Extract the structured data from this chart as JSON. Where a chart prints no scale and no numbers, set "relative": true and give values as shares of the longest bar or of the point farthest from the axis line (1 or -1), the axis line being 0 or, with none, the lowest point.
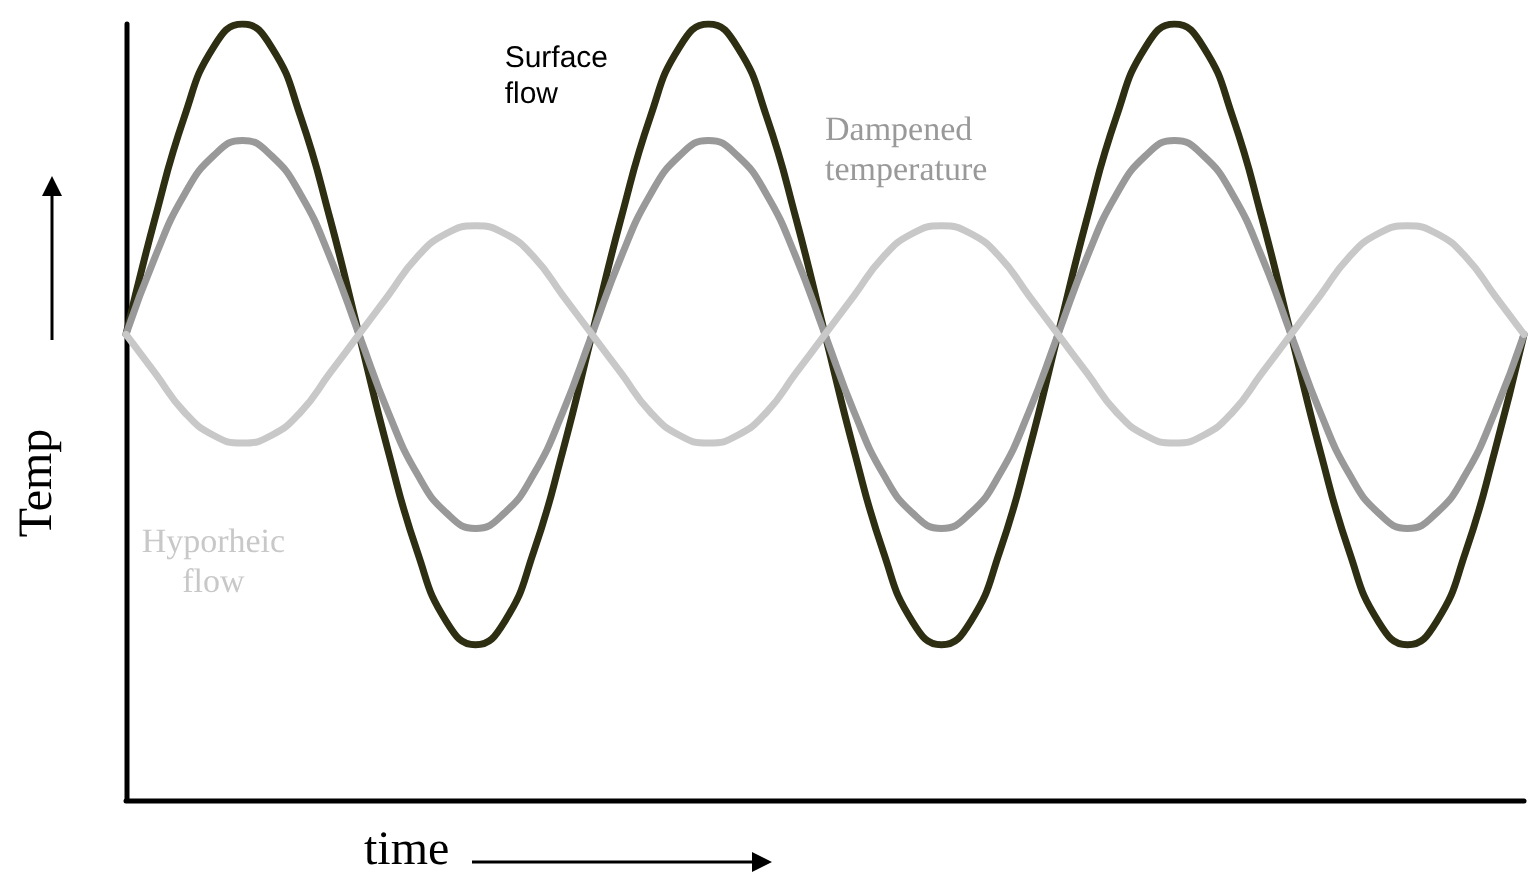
{
  "chart_data": {
    "type": "line",
    "relative": true,
    "xlabel": "time",
    "ylabel": "Temp",
    "categories": [
      null,
      null,
      null,
      null,
      null,
      null,
      null,
      null,
      null,
      null,
      null,
      null,
      null,
      null,
      null,
      null,
      null,
      null,
      null,
      null,
      null,
      null,
      null,
      null,
      null,
      null,
      null,
      null,
      null,
      null,
      null,
      null,
      null,
      null,
      null,
      null,
      null,
      null,
      null,
      null,
      null,
      null,
      null,
      null,
      null,
      null,
      null,
      null,
      null
    ],
    "series": [
      {
        "name": "Surface flow",
        "color": "#2e2e12",
        "values": [
          0.6,
          0.75,
          0.88,
          0.97,
          1.0,
          0.97,
          0.88,
          0.75,
          0.6,
          0.45,
          0.32,
          0.23,
          0.2,
          0.23,
          0.32,
          0.45,
          0.6,
          0.75,
          0.88,
          0.97,
          1.0,
          0.97,
          0.88,
          0.75,
          0.6,
          0.45,
          0.32,
          0.23,
          0.2,
          0.23,
          0.32,
          0.45,
          0.6,
          0.75,
          0.88,
          0.97,
          1.0,
          0.97,
          0.88,
          0.75,
          0.6,
          0.45,
          0.32,
          0.23,
          0.2,
          0.23,
          0.32,
          0.45,
          0.6
        ]
      },
      {
        "name": "Dampened temperature",
        "color": "#999999",
        "values": [
          0.6,
          0.7,
          0.78,
          0.83,
          0.85,
          0.83,
          0.78,
          0.7,
          0.6,
          0.5,
          0.42,
          0.37,
          0.35,
          0.37,
          0.42,
          0.5,
          0.6,
          0.7,
          0.78,
          0.83,
          0.85,
          0.83,
          0.78,
          0.7,
          0.6,
          0.5,
          0.42,
          0.37,
          0.35,
          0.37,
          0.42,
          0.5,
          0.6,
          0.7,
          0.78,
          0.83,
          0.85,
          0.83,
          0.78,
          0.7,
          0.6,
          0.5,
          0.42,
          0.37,
          0.35,
          0.37,
          0.42,
          0.5,
          0.6
        ]
      },
      {
        "name": "Hyporheic flow",
        "color": "#c8c8c8",
        "values": [
          0.6,
          0.55,
          0.5,
          0.47,
          0.46,
          0.47,
          0.5,
          0.55,
          0.6,
          0.65,
          0.7,
          0.73,
          0.74,
          0.73,
          0.7,
          0.65,
          0.6,
          0.55,
          0.5,
          0.47,
          0.46,
          0.47,
          0.5,
          0.55,
          0.6,
          0.65,
          0.7,
          0.73,
          0.74,
          0.73,
          0.7,
          0.65,
          0.6,
          0.55,
          0.5,
          0.47,
          0.46,
          0.47,
          0.5,
          0.55,
          0.6,
          0.65,
          0.7,
          0.73,
          0.74,
          0.73,
          0.7,
          0.65,
          0.6
        ]
      }
    ],
    "marker": "none",
    "line_style": "solid",
    "grid": false,
    "legend": false
  }
}
